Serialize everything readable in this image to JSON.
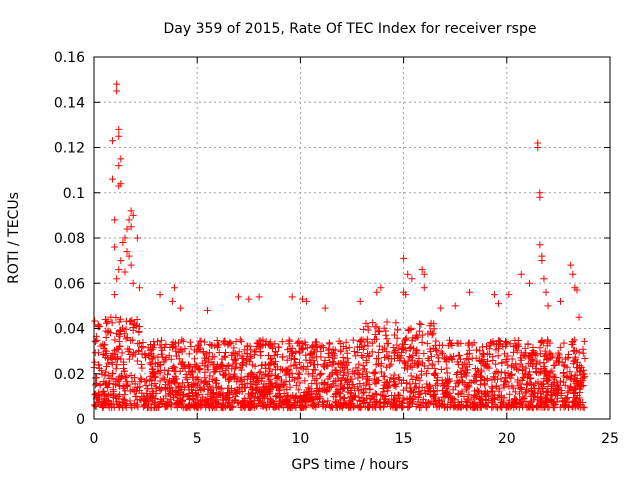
{
  "chart_data": {
    "type": "scatter",
    "title": "Day 359 of 2015, Rate Of TEC Index for receiver rspe",
    "xlabel": "GPS time / hours",
    "ylabel": "ROTI / TECUs",
    "xlim": [
      0,
      25
    ],
    "ylim": [
      0,
      0.16
    ],
    "x_ticks": [
      0,
      5,
      10,
      15,
      20,
      25
    ],
    "x_tick_labels": [
      "0",
      "5",
      "10",
      "15",
      "20",
      "25"
    ],
    "y_ticks": [
      0,
      0.02,
      0.04,
      0.06,
      0.08,
      0.1,
      0.12,
      0.14,
      0.16
    ],
    "y_tick_labels": [
      "0",
      "0.02",
      "0.04",
      "0.06",
      "0.08",
      "0.1",
      "0.12",
      "0.14",
      "0.16"
    ],
    "grid": true,
    "marker": "plus",
    "color": "#ff0000",
    "series": [
      {
        "name": "ROTI",
        "points": [
          [
            1.1,
            0.148
          ],
          [
            1.1,
            0.145
          ],
          [
            1.2,
            0.128
          ],
          [
            1.2,
            0.125
          ],
          [
            0.9,
            0.123
          ],
          [
            1.3,
            0.115
          ],
          [
            1.2,
            0.112
          ],
          [
            0.9,
            0.106
          ],
          [
            1.3,
            0.104
          ],
          [
            1.2,
            0.103
          ],
          [
            1.8,
            0.092
          ],
          [
            1.9,
            0.09
          ],
          [
            1.7,
            0.088
          ],
          [
            1.0,
            0.088
          ],
          [
            1.8,
            0.085
          ],
          [
            1.6,
            0.084
          ],
          [
            1.5,
            0.08
          ],
          [
            2.1,
            0.08
          ],
          [
            1.4,
            0.078
          ],
          [
            1.0,
            0.076
          ],
          [
            1.6,
            0.074
          ],
          [
            1.7,
            0.072
          ],
          [
            1.3,
            0.07
          ],
          [
            1.8,
            0.068
          ],
          [
            1.2,
            0.066
          ],
          [
            1.5,
            0.065
          ],
          [
            1.1,
            0.062
          ],
          [
            1.9,
            0.06
          ],
          [
            2.2,
            0.058
          ],
          [
            1.0,
            0.055
          ],
          [
            3.2,
            0.055
          ],
          [
            3.9,
            0.058
          ],
          [
            3.8,
            0.052
          ],
          [
            21.5,
            0.122
          ],
          [
            21.5,
            0.12
          ],
          [
            21.6,
            0.1
          ],
          [
            21.6,
            0.098
          ],
          [
            21.6,
            0.077
          ],
          [
            21.7,
            0.072
          ],
          [
            21.7,
            0.07
          ],
          [
            20.7,
            0.064
          ],
          [
            21.1,
            0.06
          ],
          [
            21.8,
            0.062
          ],
          [
            21.9,
            0.056
          ],
          [
            23.1,
            0.068
          ],
          [
            23.2,
            0.064
          ],
          [
            23.3,
            0.058
          ],
          [
            23.4,
            0.057
          ],
          [
            23.5,
            0.045
          ],
          [
            15.0,
            0.071
          ],
          [
            15.2,
            0.064
          ],
          [
            15.0,
            0.056
          ],
          [
            15.1,
            0.055
          ],
          [
            15.4,
            0.062
          ],
          [
            15.9,
            0.066
          ],
          [
            16.0,
            0.064
          ],
          [
            16.0,
            0.058
          ],
          [
            13.9,
            0.058
          ],
          [
            13.7,
            0.056
          ],
          [
            7.0,
            0.054
          ],
          [
            7.5,
            0.053
          ],
          [
            8.0,
            0.054
          ],
          [
            9.6,
            0.054
          ],
          [
            10.1,
            0.053
          ],
          [
            10.3,
            0.052
          ],
          [
            12.9,
            0.052
          ],
          [
            18.2,
            0.056
          ],
          [
            19.4,
            0.055
          ],
          [
            19.6,
            0.051
          ],
          [
            20.1,
            0.055
          ],
          [
            17.5,
            0.05
          ],
          [
            16.8,
            0.049
          ],
          [
            22.0,
            0.05
          ],
          [
            22.6,
            0.052
          ],
          [
            11.2,
            0.049
          ],
          [
            4.2,
            0.049
          ],
          [
            5.5,
            0.048
          ]
        ]
      }
    ],
    "dense_band": {
      "description": "dense cloud of ROTI points across the full day",
      "x_range": [
        0,
        23.8
      ],
      "baseline_min": 0.005,
      "typical_max": 0.035
    }
  }
}
